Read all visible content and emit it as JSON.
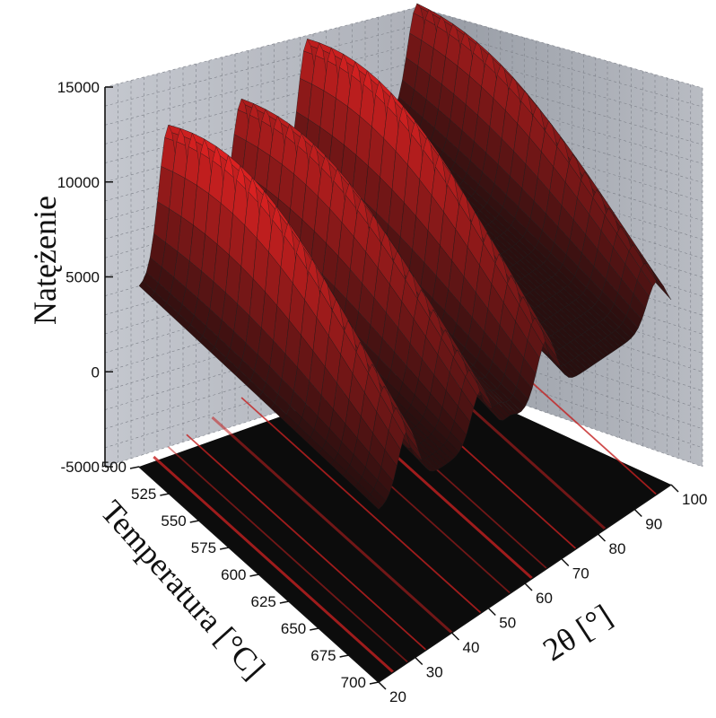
{
  "chart_data": {
    "type": "surface3d",
    "zlabel": "Natężenie",
    "ylabel": "Temperatura [°C]",
    "xlabel": "2θ [°]",
    "z_ticks": [
      "15000",
      "10000",
      "5000",
      "0",
      "-5000"
    ],
    "y_ticks": [
      "500",
      "525",
      "550",
      "575",
      "600",
      "625",
      "650",
      "675",
      "700"
    ],
    "x_ticks": [
      "20",
      "30",
      "40",
      "50",
      "60",
      "70",
      "80",
      "90",
      "100"
    ],
    "zlim": [
      -5000,
      15000
    ],
    "ylim": [
      500,
      700
    ],
    "xlim": [
      20,
      100
    ],
    "grid": true,
    "peaks": [
      {
        "x": 28,
        "peak_value": 14000
      },
      {
        "x": 48,
        "peak_value": 12500
      },
      {
        "x": 56,
        "peak_value": 5600
      },
      {
        "x": 66,
        "peak_value": 13500
      },
      {
        "x": 96,
        "peak_value": 11000
      }
    ],
    "baseline": 4800,
    "colors": {
      "surface": "#e32222",
      "surface_dark": "#0c0c0c",
      "wall": "#c8cbd2"
    }
  }
}
